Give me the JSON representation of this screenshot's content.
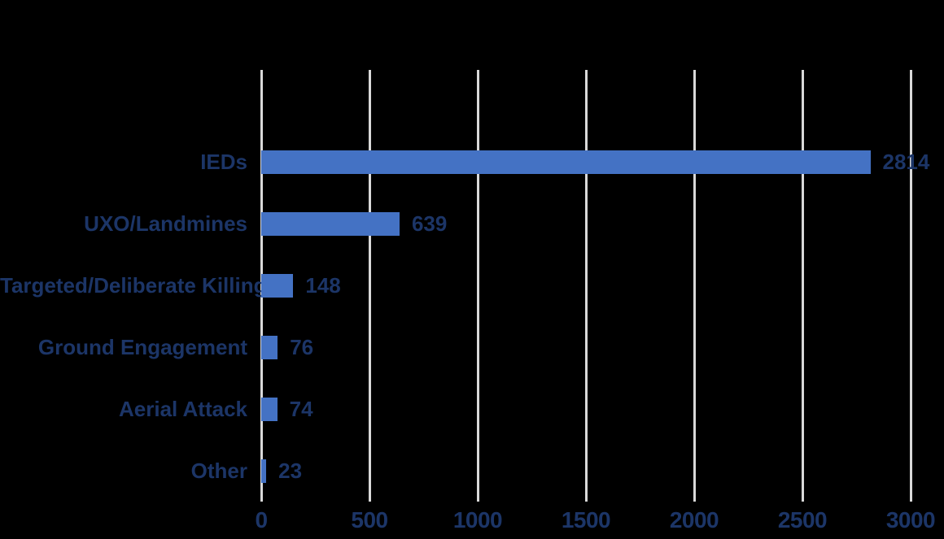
{
  "chart_data": {
    "type": "bar",
    "orientation": "horizontal",
    "title": "",
    "xlabel": "",
    "ylabel": "",
    "categories": [
      "IEDs",
      "UXO/Landmines",
      "Targeted/Deliberate Killings",
      "Ground Engagement",
      "Aerial Attack",
      "Other"
    ],
    "values": [
      2814,
      639,
      148,
      76,
      74,
      23
    ],
    "value_labels": [
      "2814",
      "639",
      "148",
      "76",
      "74",
      "23"
    ],
    "xlim": [
      0,
      3000
    ],
    "x_ticks": [
      0,
      500,
      1000,
      1500,
      2000,
      2500,
      3000
    ],
    "x_tick_labels": [
      "0",
      "500",
      "1000",
      "1500",
      "2000",
      "2500",
      "3000"
    ],
    "grid": true,
    "legend": "none",
    "colors": {
      "bar": "#4472C4",
      "text": "#1C3567",
      "gridline": "#D9D9D9",
      "background": "#000000"
    }
  }
}
